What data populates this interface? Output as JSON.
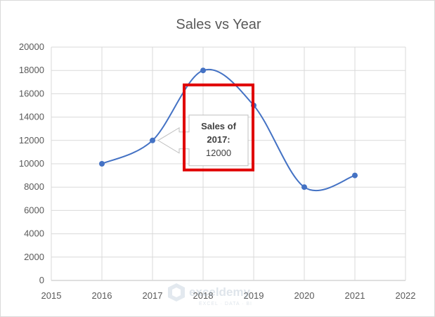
{
  "chart_data": {
    "type": "line",
    "title": "Sales vs Year",
    "xlabel": "",
    "ylabel": "",
    "xlim": [
      2015,
      2022
    ],
    "ylim": [
      0,
      20000
    ],
    "x_ticks": [
      2015,
      2016,
      2017,
      2018,
      2019,
      2020,
      2021,
      2022
    ],
    "y_ticks": [
      0,
      2000,
      4000,
      6000,
      8000,
      10000,
      12000,
      14000,
      16000,
      18000,
      20000
    ],
    "grid": true,
    "smooth": true,
    "legend": "none",
    "series": [
      {
        "x": [
          2016,
          2017,
          2018,
          2019,
          2020,
          2021
        ],
        "y": [
          10000,
          12000,
          18000,
          15000,
          8000,
          9000
        ],
        "color": "#4472c4"
      }
    ],
    "annotations": [
      {
        "point_x": 2017,
        "point_y": 12000,
        "line1": "Sales of",
        "line2": "2017:",
        "line3": "12000"
      }
    ]
  },
  "watermark": {
    "brand": "exceldemy",
    "tagline": "EXCEL · DATA · BI"
  },
  "highlight_color": "#e00000"
}
